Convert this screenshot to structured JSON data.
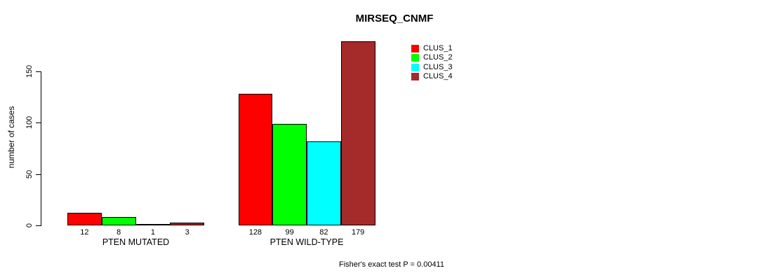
{
  "chart_data": {
    "type": "bar",
    "title": "MIRSEQ_CNMF",
    "ylabel": "number of cases",
    "xlabel": "",
    "yticks": [
      0,
      50,
      100,
      150
    ],
    "ylim": [
      0,
      220
    ],
    "grid": false,
    "bar_borders": true,
    "series_colors": [
      "#FF0000",
      "#00FF00",
      "#00FFFF",
      "#A52A2A"
    ],
    "legend": {
      "position": "top-right",
      "entries": [
        {
          "label": "CLUS_1",
          "color": "#FF0000"
        },
        {
          "label": "CLUS_2",
          "color": "#00FF00"
        },
        {
          "label": "CLUS_3",
          "color": "#00FFFF"
        },
        {
          "label": "CLUS_4",
          "color": "#A52A2A"
        }
      ]
    },
    "groups": [
      {
        "label": "PTEN MUTATED",
        "values": [
          12,
          8,
          1,
          3
        ]
      },
      {
        "label": "PTEN WILD-TYPE",
        "values": [
          128,
          99,
          82,
          179
        ]
      }
    ],
    "bar_value_labels": [
      "12",
      "8",
      "1",
      "3",
      "128",
      "99",
      "82",
      "179"
    ],
    "annotation": "Fisher's exact test P = 0.00411"
  }
}
